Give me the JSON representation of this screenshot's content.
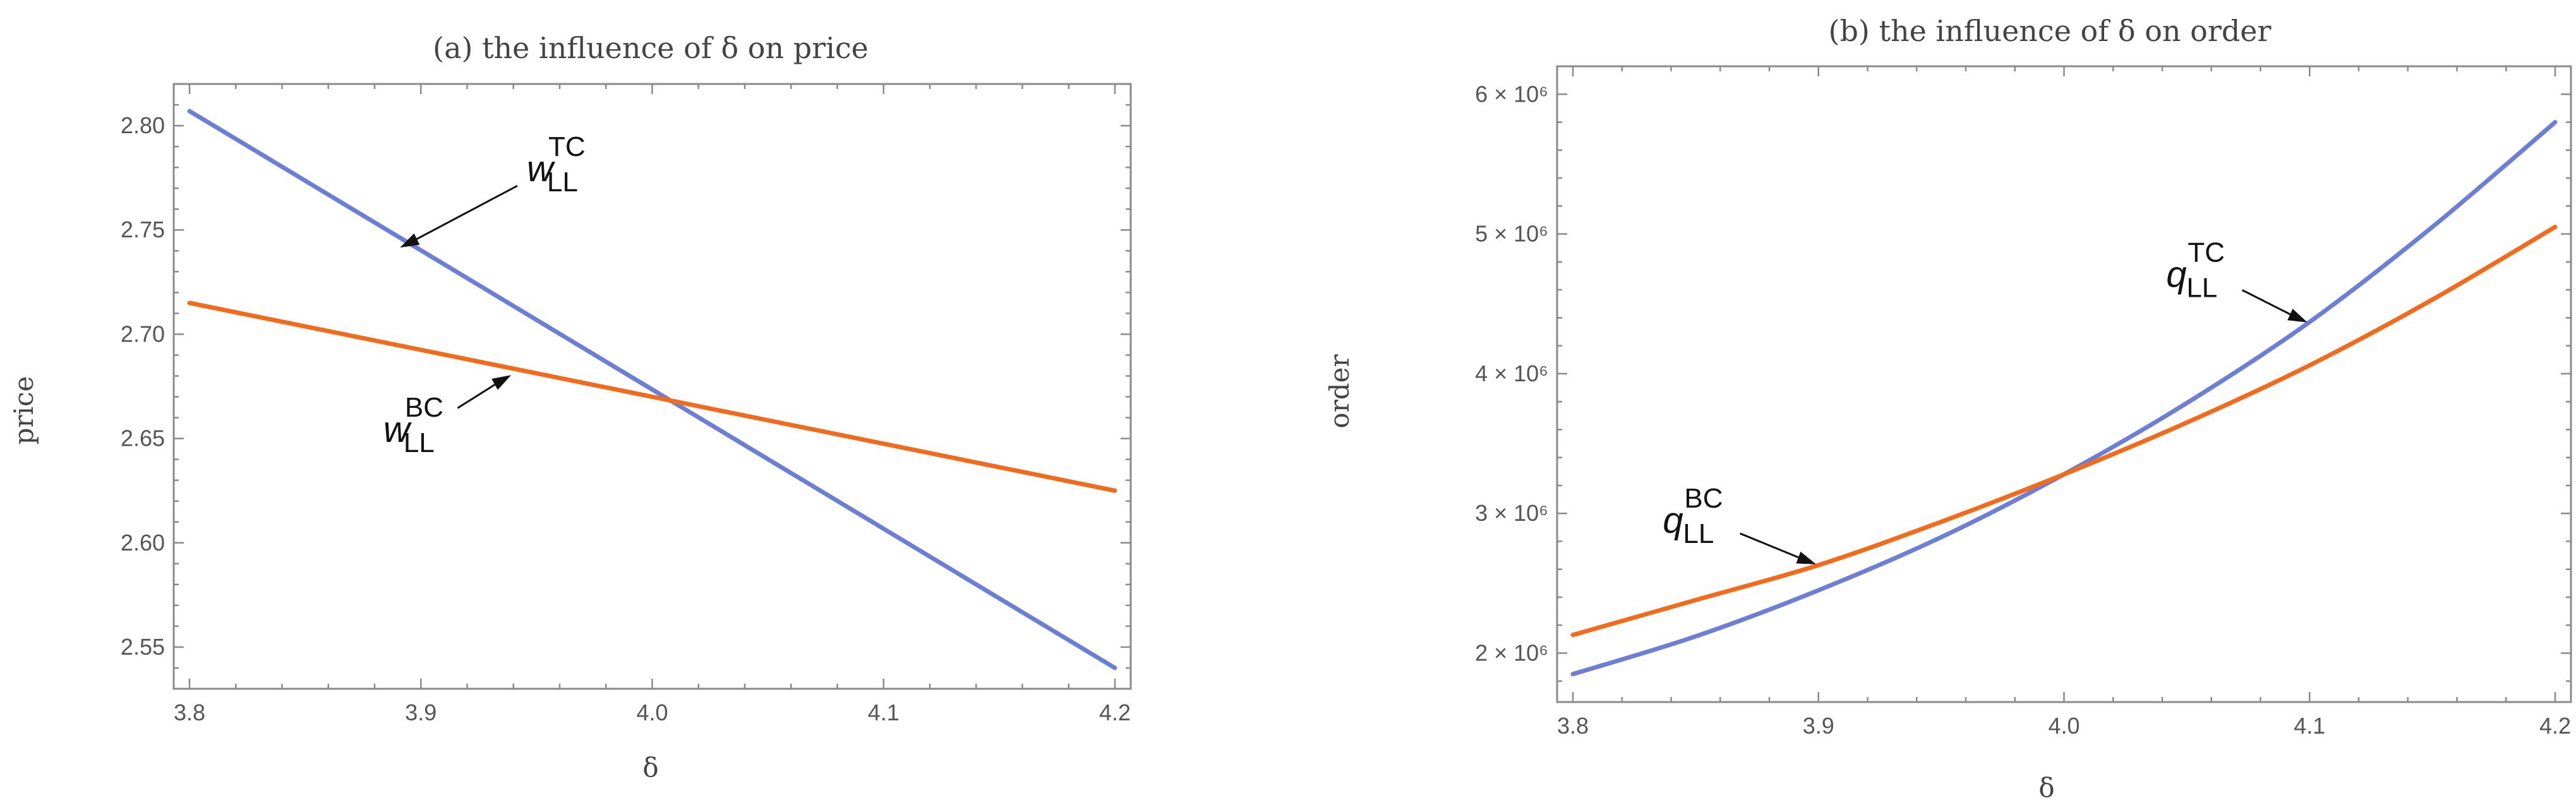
{
  "chart_data": [
    {
      "type": "line",
      "title": "(a) the influence of δ on price",
      "xlabel": "δ",
      "ylabel": "price",
      "xlim": [
        3.8,
        4.2
      ],
      "ylim": [
        2.53,
        2.82
      ],
      "x_ticks": [
        "3.8",
        "3.9",
        "4.0",
        "4.1",
        "4.2"
      ],
      "y_ticks": [
        "2.55",
        "2.60",
        "2.65",
        "2.70",
        "2.75",
        "2.80"
      ],
      "x_tick_values": [
        3.8,
        3.9,
        4.0,
        4.1,
        4.2
      ],
      "y_tick_values": [
        2.55,
        2.6,
        2.65,
        2.7,
        2.75,
        2.8
      ],
      "series": [
        {
          "name": "w_LL^TC",
          "color": "#6d7fd4",
          "x": [
            3.8,
            4.2
          ],
          "y": [
            2.807,
            2.54
          ]
        },
        {
          "name": "w_LL^BC",
          "color": "#f26b1d",
          "x": [
            3.8,
            4.2
          ],
          "y": [
            2.715,
            2.625
          ]
        }
      ],
      "annotations": [
        {
          "base": "w",
          "sub": "LL",
          "sup": "TC",
          "series": "w_LL^TC",
          "at": [
            3.89,
            2.741
          ],
          "label_pos": [
            3.96,
            2.78
          ]
        },
        {
          "base": "w",
          "sub": "LL",
          "sup": "BC",
          "series": "w_LL^BC",
          "at": [
            3.94,
            2.681
          ],
          "label_pos": [
            3.898,
            2.655
          ]
        }
      ]
    },
    {
      "type": "line",
      "title": "(b) the influence of δ on order",
      "xlabel": "δ",
      "ylabel": "order",
      "xlim": [
        3.8,
        4.2
      ],
      "ylim": [
        1650000,
        6200000
      ],
      "x_ticks": [
        "3.8",
        "3.9",
        "4.0",
        "4.1",
        "4.2"
      ],
      "y_ticks": [
        "2 × 10⁶",
        "3 × 10⁶",
        "4 × 10⁶",
        "5 × 10⁶",
        "6 × 10⁶"
      ],
      "x_tick_values": [
        3.8,
        3.9,
        4.0,
        4.1,
        4.2
      ],
      "y_tick_values": [
        2000000,
        3000000,
        4000000,
        5000000,
        6000000
      ],
      "series": [
        {
          "name": "q_LL^TC",
          "color": "#6d7fd4",
          "x": [
            3.8,
            3.85,
            3.9,
            3.95,
            4.0,
            4.05,
            4.1,
            4.15,
            4.2
          ],
          "y": [
            1850000,
            2120000,
            2450000,
            2830000,
            3280000,
            3790000,
            4370000,
            5050000,
            5800000
          ]
        },
        {
          "name": "q_LL^BC",
          "color": "#f26b1d",
          "x": [
            3.8,
            3.85,
            3.9,
            3.95,
            4.0,
            4.05,
            4.1,
            4.15,
            4.2
          ],
          "y": [
            2130000,
            2380000,
            2630000,
            2940000,
            3280000,
            3650000,
            4060000,
            4530000,
            5050000
          ]
        }
      ],
      "annotations": [
        {
          "base": "q",
          "sub": "LL",
          "sup": "TC",
          "series": "q_LL^TC",
          "at": [
            4.1,
            4360000
          ],
          "label_pos": [
            4.055,
            4720000
          ]
        },
        {
          "base": "q",
          "sub": "LL",
          "sup": "BC",
          "series": "q_LL^BC",
          "at": [
            3.9,
            2630000
          ],
          "label_pos": [
            3.85,
            2960000
          ]
        }
      ]
    }
  ]
}
